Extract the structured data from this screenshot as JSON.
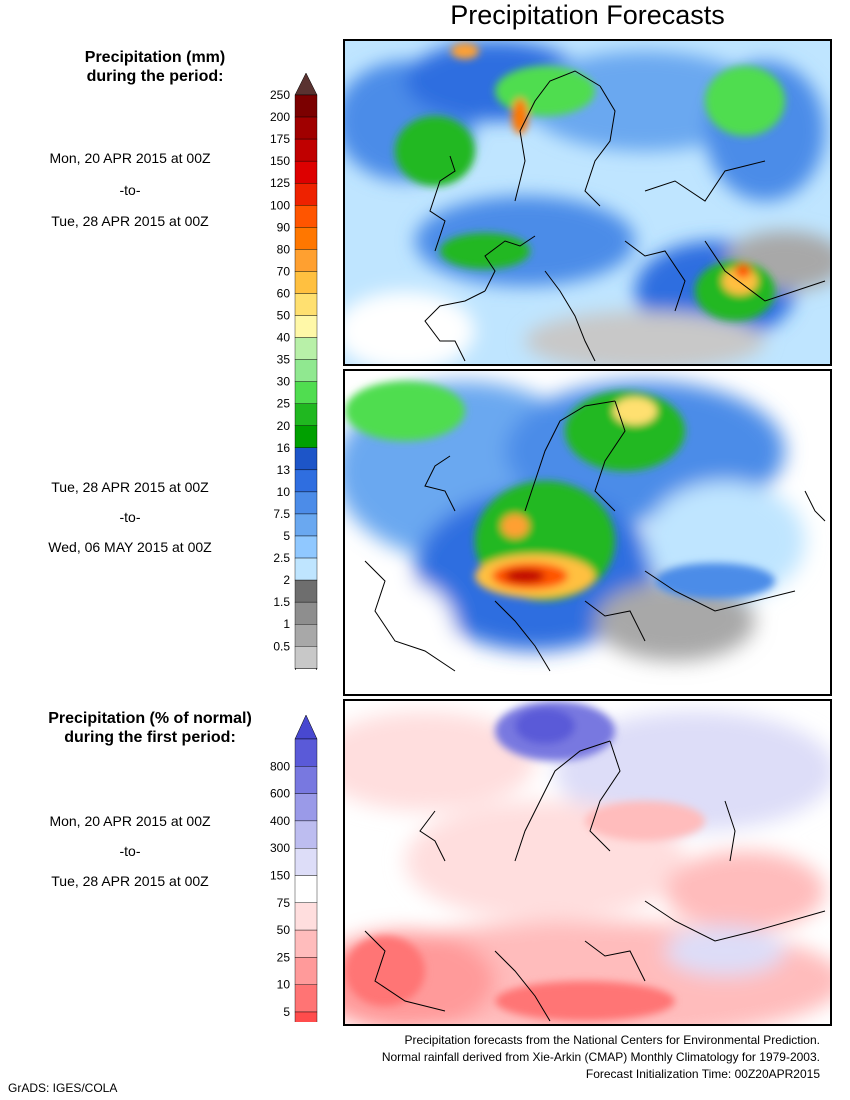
{
  "title": "Precipitation Forecasts",
  "legend_mm": {
    "heading": [
      "Precipitation (mm)",
      "during the period:"
    ],
    "levels": [
      "250",
      "200",
      "175",
      "150",
      "125",
      "100",
      "90",
      "80",
      "70",
      "60",
      "50",
      "40",
      "35",
      "30",
      "25",
      "20",
      "16",
      "13",
      "10",
      "7.5",
      "5",
      "2.5",
      "2",
      "1.5",
      "1",
      "0.5"
    ],
    "colors": [
      "#7b0000",
      "#a00000",
      "#c00000",
      "#dd0000",
      "#ee2200",
      "#ff5500",
      "#ff7700",
      "#ffa030",
      "#ffc040",
      "#ffe070",
      "#fff8a8",
      "#b8f0a8",
      "#90e890",
      "#50dd50",
      "#20b820",
      "#00a000",
      "#1d55c8",
      "#2f6ee0",
      "#4c8ce8",
      "#6aa8f0",
      "#90c8ff",
      "#bfe5ff",
      "#6e6e6e",
      "#8e8e8e",
      "#a8a8a8",
      "#c8c8c8"
    ],
    "top_arrow_color": "#5a3230"
  },
  "period1": [
    "Mon, 20 APR 2015 at 00Z",
    "-to-",
    "Tue, 28 APR 2015 at 00Z"
  ],
  "period2": [
    "Tue, 28 APR 2015 at 00Z",
    "-to-",
    "Wed, 06 MAY 2015 at 00Z"
  ],
  "legend_pct": {
    "heading": [
      "Precipitation (% of normal)",
      "during the first period:"
    ],
    "levels": [
      "800",
      "600",
      "400",
      "300",
      "150",
      "75",
      "50",
      "25",
      "10",
      "5"
    ],
    "colors": [
      "#5a5ad8",
      "#7878e0",
      "#9a9ae8",
      "#bdbdf0",
      "#ddddf8",
      "#ffffff",
      "#ffdede",
      "#ffbcbc",
      "#ff9a9a",
      "#ff7474",
      "#ff4c4c"
    ],
    "top_arrow_color": "#4848d0",
    "bottom_arrow_color": "#ff3a3a"
  },
  "period3": [
    "Mon, 20 APR 2015 at 00Z",
    "-to-",
    "Tue, 28 APR 2015 at 00Z"
  ],
  "footer": [
    "Precipitation forecasts from the National Centers for Environmental Prediction.",
    "Normal rainfall derived from Xie-Arkin (CMAP) Monthly Climatology for 1979-2003.",
    "Forecast Initialization Time: 00Z20APR2015"
  ],
  "credit": "GrADS: IGES/COLA"
}
